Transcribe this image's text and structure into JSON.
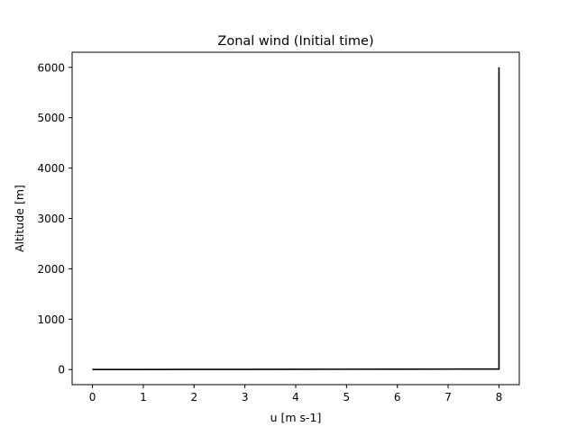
{
  "chart_data": {
    "type": "line",
    "title": "Zonal wind (Initial time)",
    "xlabel": "u [m s-1]",
    "ylabel": "Altitude [m]",
    "xlim": [
      -0.4,
      8.4
    ],
    "ylim": [
      -300,
      6300
    ],
    "xticks": [
      0,
      1,
      2,
      3,
      4,
      5,
      6,
      7,
      8
    ],
    "yticks": [
      0,
      1000,
      2000,
      3000,
      4000,
      5000,
      6000
    ],
    "grid": false,
    "series": [
      {
        "color": "#000000",
        "x": [
          0,
          1,
          2,
          3,
          4,
          5,
          6,
          7,
          8,
          8,
          8,
          8,
          8,
          8,
          8
        ],
        "y": [
          0,
          1.25,
          2.5,
          3.75,
          5,
          6.25,
          7.5,
          8.75,
          10,
          1000,
          2000,
          3000,
          4000,
          5000,
          6000
        ]
      }
    ]
  }
}
